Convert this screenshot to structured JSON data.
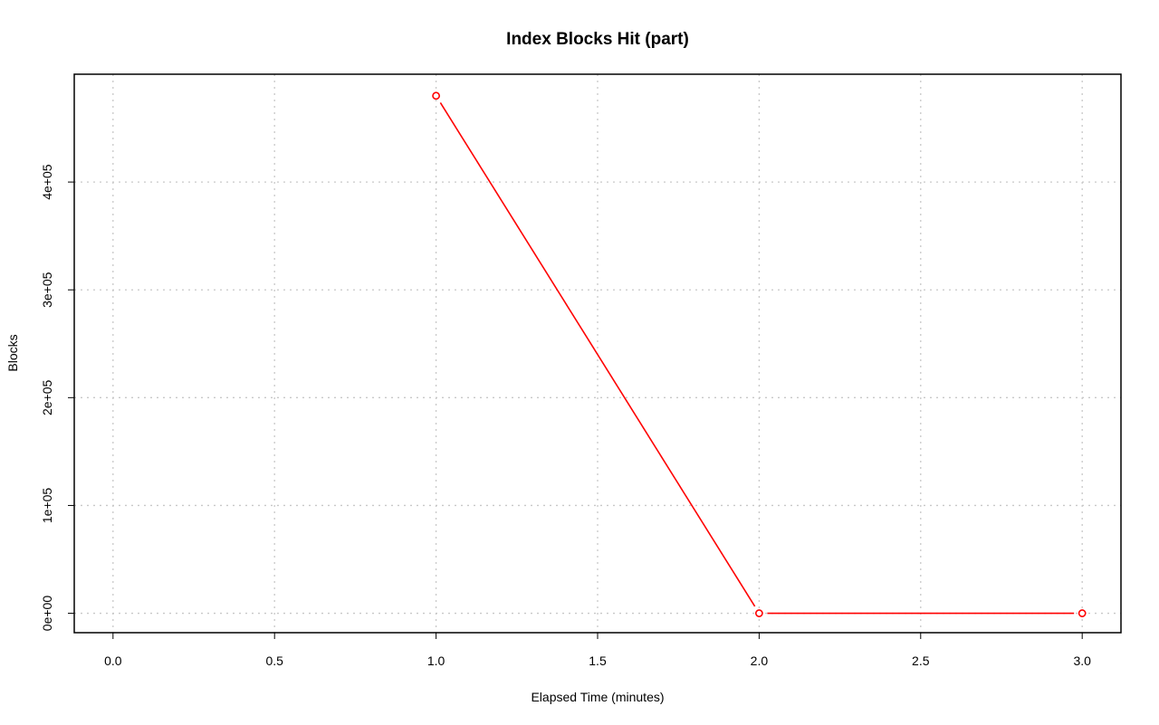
{
  "chart_data": {
    "type": "line",
    "title": "Index Blocks Hit (part)",
    "xlabel": "Elapsed Time (minutes)",
    "ylabel": "Blocks",
    "xlim": [
      -0.12,
      3.12
    ],
    "ylim": [
      -18000,
      500000
    ],
    "x_ticks": [
      0.0,
      0.5,
      1.0,
      1.5,
      2.0,
      2.5,
      3.0
    ],
    "x_tick_labels": [
      "0.0",
      "0.5",
      "1.0",
      "1.5",
      "2.0",
      "2.5",
      "3.0"
    ],
    "y_ticks": [
      0,
      100000,
      200000,
      300000,
      400000
    ],
    "y_tick_labels": [
      "0e+00",
      "1e+05",
      "2e+05",
      "3e+05",
      "4e+05"
    ],
    "grid": true,
    "grid_style": "dotted",
    "series": [
      {
        "color": "#ff0000",
        "marker": "open-circle",
        "x": [
          1,
          2,
          3
        ],
        "y": [
          480000,
          0,
          0
        ]
      }
    ]
  }
}
